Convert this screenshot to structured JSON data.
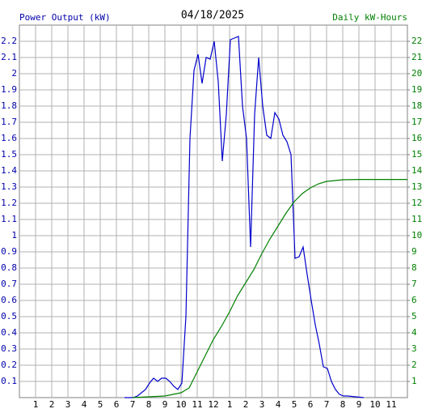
{
  "chart_data": {
    "type": "line",
    "title": "04/18/2025",
    "y_label": "Power Output (kW)",
    "y2_label": "Daily kW-Hours",
    "xlim": [
      0,
      24
    ],
    "xticks": [
      1,
      2,
      3,
      4,
      5,
      6,
      7,
      8,
      9,
      10,
      11,
      12,
      {
        "value": 13,
        "label": "1"
      },
      {
        "value": 14,
        "label": "2"
      },
      {
        "value": 15,
        "label": "3"
      },
      {
        "value": 16,
        "label": "4"
      },
      {
        "value": 17,
        "label": "5"
      },
      {
        "value": 18,
        "label": "6"
      },
      {
        "value": 19,
        "label": "7"
      },
      {
        "value": 20,
        "label": "8"
      },
      {
        "value": 21,
        "label": "9"
      },
      {
        "value": 22,
        "label": "10"
      },
      {
        "value": 23,
        "label": "11"
      }
    ],
    "ylim": [
      0,
      2.3
    ],
    "yticks": [
      0.1,
      0.2,
      0.3,
      0.4,
      0.5,
      0.6,
      0.7,
      0.8,
      0.9,
      1.0,
      1.1,
      1.2,
      1.3,
      1.4,
      1.5,
      1.6,
      1.7,
      1.8,
      1.9,
      2.0,
      2.1,
      2.2
    ],
    "y2lim": [
      0,
      23
    ],
    "y2ticks": [
      1,
      2,
      3,
      4,
      5,
      6,
      7,
      8,
      9,
      10,
      11,
      12,
      13,
      14,
      15,
      16,
      17,
      18,
      19,
      20,
      21,
      22
    ],
    "grid": true,
    "y_color": "#0000aa",
    "y2_color": "#008000",
    "series": [
      {
        "name": "Power Output (kW)",
        "color": "#0000cc",
        "x": [
          6.5,
          7.05,
          7.3,
          7.8,
          8.05,
          8.3,
          8.55,
          8.8,
          9.05,
          9.3,
          9.55,
          9.8,
          10.05,
          10.3,
          10.55,
          10.8,
          11.05,
          11.3,
          11.55,
          11.8,
          12.05,
          12.3,
          12.55,
          12.8,
          13.05,
          13.3,
          13.55,
          13.8,
          14.05,
          14.3,
          14.55,
          14.8,
          15.05,
          15.3,
          15.55,
          15.8,
          16.05,
          16.3,
          16.55,
          16.8,
          17.05,
          17.3,
          17.55,
          17.8,
          18.05,
          18.3,
          18.55,
          18.8,
          19.05,
          19.3,
          19.55,
          19.8,
          20.05,
          20.3,
          21.3
        ],
        "values": [
          0,
          0,
          0.01,
          0.05,
          0.09,
          0.12,
          0.1,
          0.12,
          0.12,
          0.1,
          0.07,
          0.05,
          0.09,
          0.5,
          1.6,
          2.02,
          2.12,
          1.94,
          2.1,
          2.09,
          2.2,
          1.95,
          1.46,
          1.75,
          2.21,
          2.22,
          2.23,
          1.8,
          1.6,
          0.93,
          1.75,
          2.1,
          1.8,
          1.62,
          1.6,
          1.76,
          1.72,
          1.62,
          1.58,
          1.5,
          0.86,
          0.87,
          0.93,
          0.76,
          0.6,
          0.45,
          0.33,
          0.19,
          0.18,
          0.1,
          0.05,
          0.02,
          0.01,
          0.01,
          0
        ]
      },
      {
        "name": "Daily kW-Hours",
        "color": "#008000",
        "axis": "y2",
        "x": [
          7.0,
          9.0,
          10.0,
          10.5,
          11.0,
          11.5,
          12.0,
          12.5,
          13.0,
          13.5,
          14.0,
          14.5,
          15.0,
          15.5,
          16.0,
          16.5,
          17.0,
          17.5,
          18.0,
          18.5,
          19.0,
          20.0,
          21.0,
          24.0
        ],
        "values": [
          0,
          0.1,
          0.3,
          0.6,
          1.6,
          2.6,
          3.6,
          4.4,
          5.3,
          6.3,
          7.1,
          7.9,
          8.9,
          9.8,
          10.6,
          11.4,
          12.1,
          12.6,
          12.95,
          13.2,
          13.35,
          13.45,
          13.47,
          13.47
        ]
      }
    ]
  }
}
